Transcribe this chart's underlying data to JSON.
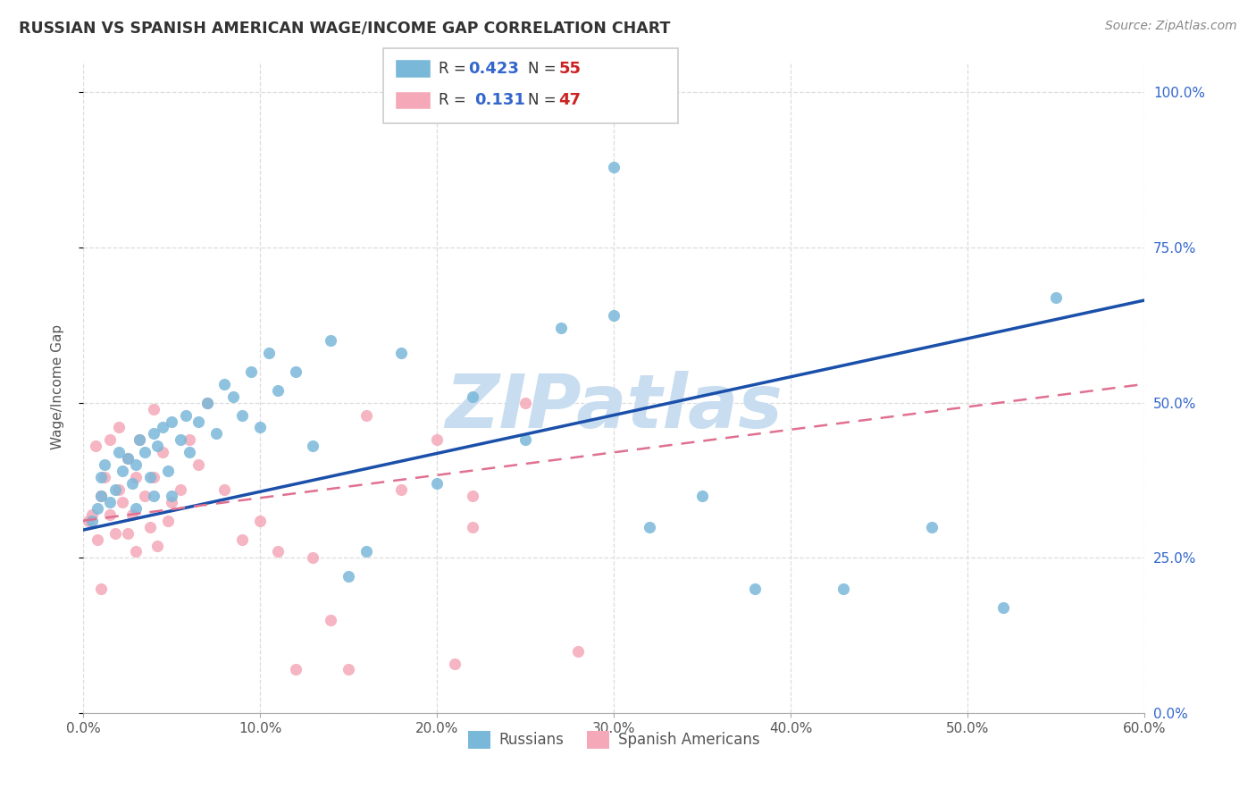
{
  "title": "RUSSIAN VS SPANISH AMERICAN WAGE/INCOME GAP CORRELATION CHART",
  "source": "Source: ZipAtlas.com",
  "ylabel_label": "Wage/Income Gap",
  "xlim": [
    0.0,
    0.6
  ],
  "ylim": [
    0.0,
    1.05
  ],
  "yticks": [
    0.0,
    0.25,
    0.5,
    0.75,
    1.0
  ],
  "xticks": [
    0.0,
    0.1,
    0.2,
    0.3,
    0.4,
    0.5,
    0.6
  ],
  "russian_color": "#7ab8d9",
  "spanish_color": "#f4a8b8",
  "legend_R_color": "#3366cc",
  "legend_N_color": "#cc2222",
  "watermark": "ZIPatlas",
  "watermark_color": "#c8ddf0",
  "trend_russian_color": "#1a4faa",
  "trend_spanish_color": "#e07090",
  "background_color": "#ffffff",
  "grid_color": "#dddddd",
  "russians_x": [
    0.005,
    0.008,
    0.01,
    0.01,
    0.012,
    0.015,
    0.018,
    0.02,
    0.022,
    0.025,
    0.028,
    0.03,
    0.03,
    0.032,
    0.035,
    0.038,
    0.04,
    0.04,
    0.042,
    0.045,
    0.048,
    0.05,
    0.05,
    0.055,
    0.058,
    0.06,
    0.065,
    0.07,
    0.075,
    0.08,
    0.085,
    0.09,
    0.095,
    0.1,
    0.105,
    0.11,
    0.12,
    0.13,
    0.14,
    0.15,
    0.16,
    0.18,
    0.2,
    0.22,
    0.25,
    0.27,
    0.3,
    0.32,
    0.35,
    0.38,
    0.3,
    0.43,
    0.48,
    0.52,
    0.55
  ],
  "russians_y": [
    0.31,
    0.33,
    0.35,
    0.38,
    0.4,
    0.34,
    0.36,
    0.42,
    0.39,
    0.41,
    0.37,
    0.33,
    0.4,
    0.44,
    0.42,
    0.38,
    0.35,
    0.45,
    0.43,
    0.46,
    0.39,
    0.35,
    0.47,
    0.44,
    0.48,
    0.42,
    0.47,
    0.5,
    0.45,
    0.53,
    0.51,
    0.48,
    0.55,
    0.46,
    0.58,
    0.52,
    0.55,
    0.43,
    0.6,
    0.22,
    0.26,
    0.58,
    0.37,
    0.51,
    0.44,
    0.62,
    0.64,
    0.3,
    0.35,
    0.2,
    0.88,
    0.2,
    0.3,
    0.17,
    0.67
  ],
  "spanish_x": [
    0.003,
    0.005,
    0.007,
    0.008,
    0.01,
    0.01,
    0.012,
    0.015,
    0.015,
    0.018,
    0.02,
    0.02,
    0.022,
    0.025,
    0.025,
    0.028,
    0.03,
    0.03,
    0.032,
    0.035,
    0.038,
    0.04,
    0.04,
    0.042,
    0.045,
    0.048,
    0.05,
    0.055,
    0.06,
    0.065,
    0.07,
    0.08,
    0.09,
    0.1,
    0.11,
    0.12,
    0.13,
    0.14,
    0.15,
    0.16,
    0.18,
    0.2,
    0.21,
    0.22,
    0.22,
    0.25,
    0.28
  ],
  "spanish_y": [
    0.31,
    0.32,
    0.43,
    0.28,
    0.35,
    0.2,
    0.38,
    0.44,
    0.32,
    0.29,
    0.46,
    0.36,
    0.34,
    0.41,
    0.29,
    0.32,
    0.38,
    0.26,
    0.44,
    0.35,
    0.3,
    0.49,
    0.38,
    0.27,
    0.42,
    0.31,
    0.34,
    0.36,
    0.44,
    0.4,
    0.5,
    0.36,
    0.28,
    0.31,
    0.26,
    0.07,
    0.25,
    0.15,
    0.07,
    0.48,
    0.36,
    0.44,
    0.08,
    0.3,
    0.35,
    0.5,
    0.1
  ],
  "trend_russian_x0": 0.0,
  "trend_russian_y0": 0.295,
  "trend_russian_x1": 0.6,
  "trend_russian_y1": 0.665,
  "trend_spanish_x0": 0.0,
  "trend_spanish_y0": 0.31,
  "trend_spanish_x1": 0.6,
  "trend_spanish_y1": 0.53
}
